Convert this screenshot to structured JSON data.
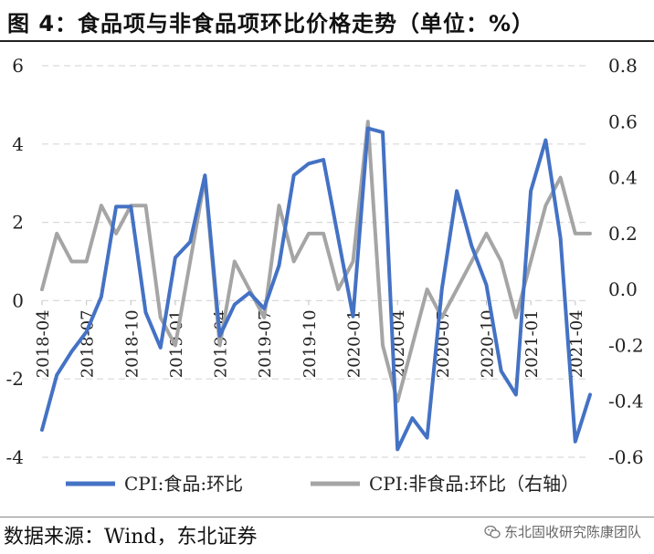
{
  "header": {
    "title": "图 4：食品项与非食品项环比价格走势（单位：%）"
  },
  "footer": {
    "source": "数据来源：Wind，东北证券",
    "watermark": "东北固收研究陈康团队",
    "watermark_icon": "wechat-icon"
  },
  "chart_data": {
    "type": "line",
    "title": "图 4：食品项与非食品项环比价格走势（单位：%）",
    "x": [
      "2018-04",
      "2018-05",
      "2018-06",
      "2018-07",
      "2018-08",
      "2018-09",
      "2018-10",
      "2018-11",
      "2018-12",
      "2019-01",
      "2019-02",
      "2019-03",
      "2019-04",
      "2019-05",
      "2019-06",
      "2019-07",
      "2019-08",
      "2019-09",
      "2019-10",
      "2019-11",
      "2019-12",
      "2020-01",
      "2020-02",
      "2020-03",
      "2020-04",
      "2020-05",
      "2020-06",
      "2020-07",
      "2020-08",
      "2020-09",
      "2020-10",
      "2020-11",
      "2020-12",
      "2021-01",
      "2021-02",
      "2021-03",
      "2021-04",
      "2021-05"
    ],
    "x_tick_labels": [
      "2018-04",
      "2018-07",
      "2018-10",
      "2019-01",
      "2019-04",
      "2019-07",
      "2019-10",
      "2020-01",
      "2020-04",
      "2020-07",
      "2020-10",
      "2021-01",
      "2021-04"
    ],
    "y_left": {
      "ylim": [
        -4,
        6
      ],
      "ticks": [
        "6",
        "4",
        "2",
        "0",
        "-2",
        "-4"
      ]
    },
    "y_right": {
      "ylim": [
        -0.6,
        0.8
      ],
      "ticks": [
        "0.8",
        "0.6",
        "0.4",
        "0.2",
        "0.0",
        "-0.2",
        "-0.4",
        "-0.6"
      ]
    },
    "grid": true,
    "legend_position": "bottom",
    "series": [
      {
        "name": "CPI:食品:环比",
        "axis": "left",
        "color": "#4472C4",
        "values": [
          -3.3,
          -1.9,
          -1.3,
          -0.8,
          0.1,
          2.4,
          2.4,
          -0.3,
          -1.2,
          1.1,
          1.5,
          3.2,
          -0.9,
          -0.1,
          0.2,
          -0.2,
          0.9,
          3.2,
          3.5,
          3.6,
          1.6,
          -0.4,
          4.4,
          4.3,
          -3.8,
          -3.0,
          -3.5,
          0.3,
          2.8,
          1.4,
          0.4,
          -1.8,
          -2.4,
          2.8,
          4.1,
          1.6,
          -3.6,
          -2.4
        ]
      },
      {
        "name": "CPI:非食品:环比（右轴）",
        "axis": "right",
        "color": "#A5A5A5",
        "values": [
          0.0,
          0.2,
          0.1,
          0.1,
          0.3,
          0.2,
          0.3,
          0.3,
          -0.1,
          -0.2,
          0.1,
          0.4,
          -0.2,
          0.1,
          0.0,
          -0.1,
          0.3,
          0.1,
          0.2,
          0.2,
          0.0,
          0.1,
          0.6,
          -0.2,
          -0.4,
          -0.2,
          0.0,
          -0.1,
          0.0,
          0.1,
          0.2,
          0.1,
          -0.1,
          0.1,
          0.3,
          0.4,
          0.2,
          0.2
        ]
      }
    ]
  }
}
